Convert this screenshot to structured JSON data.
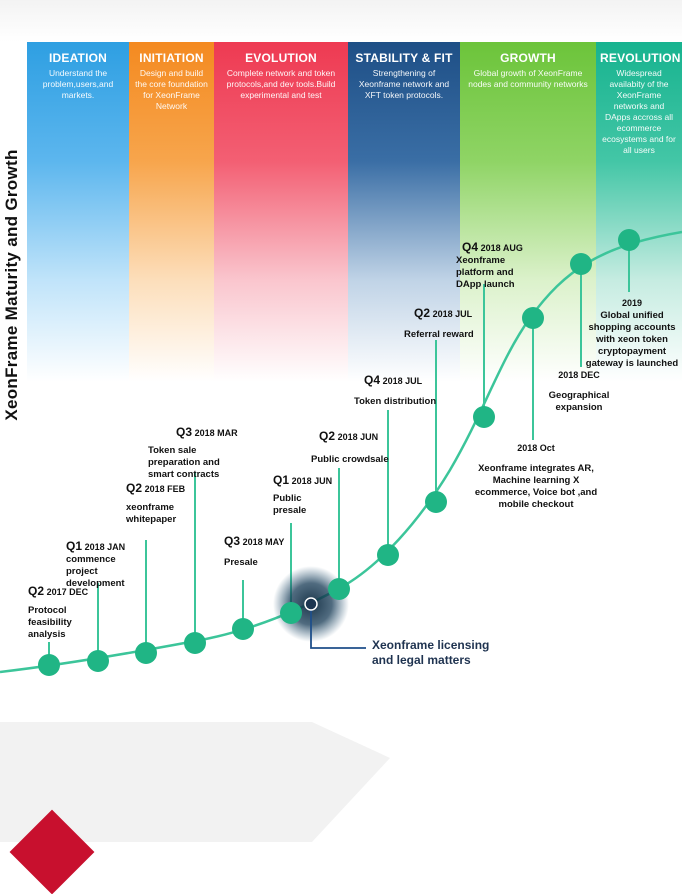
{
  "y_axis_title": "XeonFrame Maturity and Growth",
  "phases": [
    {
      "title": "IDEATION",
      "desc": "Understand the problem,users,and markets."
    },
    {
      "title": "INITIATION",
      "desc": "Design and build the core foundation for XeonFrame Network"
    },
    {
      "title": "EVOLUTION",
      "desc": "Complete network and token protocols,and dev tools.Build experimental and test"
    },
    {
      "title": "STABILITY & FIT",
      "desc": "Strengthening of Xeonframe network and XFT token protocols."
    },
    {
      "title": "GROWTH",
      "desc": "Global growth of XeonFrame nodes and community networks"
    },
    {
      "title": "REVOLUTION",
      "desc": "Widespread availabity of the XeonFrame networks and DApps accross all ecommerce ecosystems and for all users"
    }
  ],
  "milestones": [
    {
      "q": "Q2",
      "date": "2017 DEC",
      "text": "Protocol feasibility analysis"
    },
    {
      "q": "Q1",
      "date": "2018 JAN",
      "text": "commence project development"
    },
    {
      "q": "Q2",
      "date": "2018 FEB",
      "text": "xeonframe whitepaper"
    },
    {
      "q": "Q3",
      "date": "2018 MAR",
      "text": "Token sale preparation and smart contracts"
    },
    {
      "q": "Q3",
      "date": "2018 MAY",
      "text": "Presale"
    },
    {
      "q": "Q1",
      "date": "2018 JUN",
      "text": "Public presale"
    },
    {
      "q": "Q2",
      "date": "2018 JUN",
      "text": "Public crowdsale"
    },
    {
      "q": "Q4",
      "date": "2018 JUL",
      "text": "Token distribution"
    },
    {
      "q": "Q2",
      "date": "2018 JUL",
      "text": "Referral  reward"
    },
    {
      "q": "Q4",
      "date": "2018 AUG",
      "text": "Xeonframe platform and DApp launch"
    },
    {
      "q": "",
      "date": "2018 Oct",
      "text": "Xeonframe integrates AR, Machine learning X ecommerce, Voice bot ,and mobile checkout"
    },
    {
      "q": "",
      "date": "2018 DEC",
      "text": "Geographical expansion"
    },
    {
      "q": "",
      "date": "2019",
      "text": "Global unified shopping accounts with xeon token cryptopayment gateway is launched"
    }
  ],
  "legal_note": "Xeonframe licensing and legal matters",
  "colors": {
    "dot": "#20b585",
    "curve": "#3cc59a",
    "stem": "#3cc59a",
    "legal_dot": "#1c3550",
    "legal_line": "#1f4f8a"
  }
}
